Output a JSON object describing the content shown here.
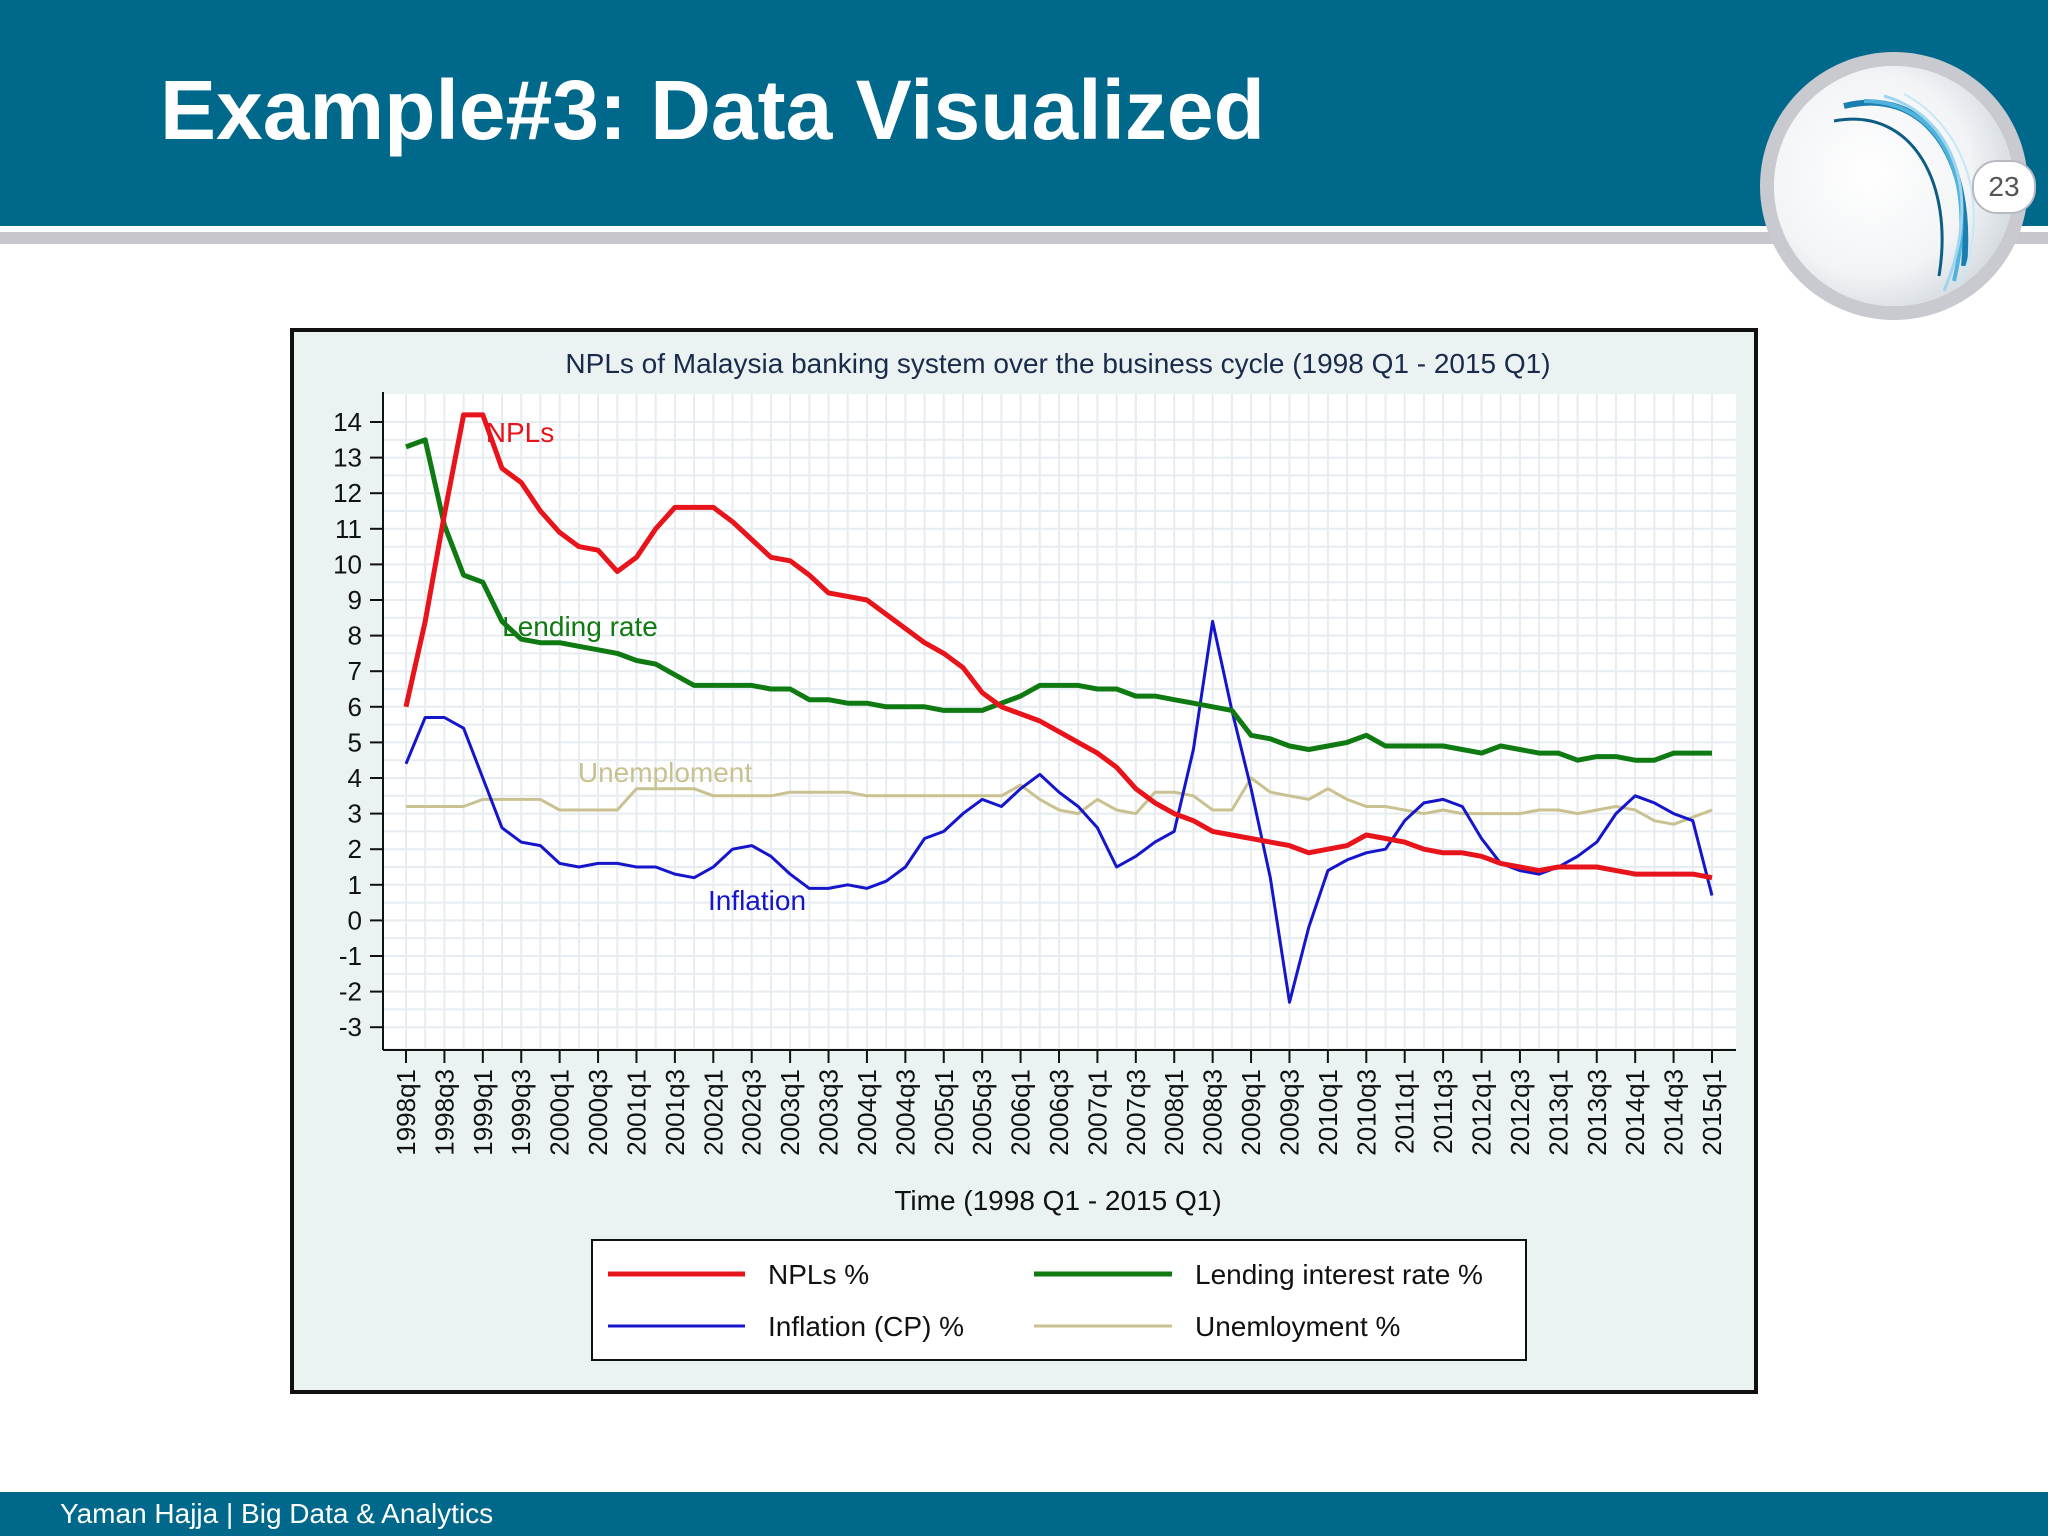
{
  "slide": {
    "title": "Example#3: Data Visualized",
    "page_number": "23",
    "footer": "Yaman Hajja | Big Data & Analytics"
  },
  "colors": {
    "header_band": "#00688b",
    "stripe": "#c6c6cc",
    "npls": "#e8141c",
    "lending": "#0f7a12",
    "inflation": "#1515cc",
    "unemployment": "#c9c190"
  },
  "icons": [
    "swirl-logo-icon"
  ],
  "chart_data": {
    "type": "line",
    "title": "NPLs of Malaysia banking system over the business cycle (1998 Q1 - 2015 Q1)",
    "xlabel": "Time (1998 Q1 - 2015 Q1)",
    "ylabel": "",
    "ylim": [
      -3,
      14
    ],
    "yticks": [
      "14",
      "13",
      "12",
      "11",
      "10",
      "9",
      "8",
      "7",
      "6",
      "5",
      "4",
      "3",
      "2",
      "1",
      "0",
      "-1",
      "-2",
      "-3"
    ],
    "x": [
      "1998q1",
      "1998q2",
      "1998q3",
      "1998q4",
      "1999q1",
      "1999q2",
      "1999q3",
      "1999q4",
      "2000q1",
      "2000q2",
      "2000q3",
      "2000q4",
      "2001q1",
      "2001q2",
      "2001q3",
      "2001q4",
      "2002q1",
      "2002q2",
      "2002q3",
      "2002q4",
      "2003q1",
      "2003q2",
      "2003q3",
      "2003q4",
      "2004q1",
      "2004q2",
      "2004q3",
      "2004q4",
      "2005q1",
      "2005q2",
      "2005q3",
      "2005q4",
      "2006q1",
      "2006q2",
      "2006q3",
      "2006q4",
      "2007q1",
      "2007q2",
      "2007q3",
      "2007q4",
      "2008q1",
      "2008q2",
      "2008q3",
      "2008q4",
      "2009q1",
      "2009q2",
      "2009q3",
      "2009q4",
      "2010q1",
      "2010q2",
      "2010q3",
      "2010q4",
      "2011q1",
      "2011q2",
      "2011q3",
      "2011q4",
      "2012q1",
      "2012q2",
      "2012q3",
      "2012q4",
      "2013q1",
      "2013q2",
      "2013q3",
      "2013q4",
      "2014q1",
      "2014q2",
      "2014q3",
      "2014q4",
      "2015q1"
    ],
    "x_tick_labels": [
      "1998q1",
      "1998q3",
      "1999q1",
      "1999q3",
      "2000q1",
      "2000q3",
      "2001q1",
      "2001q3",
      "2002q1",
      "2002q3",
      "2003q1",
      "2003q3",
      "2004q1",
      "2004q3",
      "2005q1",
      "2005q3",
      "2006q1",
      "2006q3",
      "2007q1",
      "2007q3",
      "2008q1",
      "2008q3",
      "2009q1",
      "2009q3",
      "2010q1",
      "2010q3",
      "2011q1",
      "2011q3",
      "2012q1",
      "2012q3",
      "2013q1",
      "2013q3",
      "2014q1",
      "2014q3",
      "2015q1"
    ],
    "grid": true,
    "legend_position": "bottom",
    "series": [
      {
        "key": "npls",
        "name": "NPLs %",
        "inline_label": "NPLs",
        "values": [
          6.0,
          8.4,
          11.4,
          14.2,
          14.2,
          12.7,
          12.3,
          11.5,
          10.9,
          10.5,
          10.4,
          9.8,
          10.2,
          11.0,
          11.6,
          11.6,
          11.6,
          11.2,
          10.7,
          10.2,
          10.1,
          9.7,
          9.2,
          9.1,
          9.0,
          8.6,
          8.2,
          7.8,
          7.5,
          7.1,
          6.4,
          6.0,
          5.8,
          5.6,
          5.3,
          5.0,
          4.7,
          4.3,
          3.7,
          3.3,
          3.0,
          2.8,
          2.5,
          2.4,
          2.3,
          2.2,
          2.1,
          1.9,
          2.0,
          2.1,
          2.4,
          2.3,
          2.2,
          2.0,
          1.9,
          1.9,
          1.8,
          1.6,
          1.5,
          1.4,
          1.5,
          1.5,
          1.5,
          1.4,
          1.3,
          1.3,
          1.3,
          1.3,
          1.2
        ]
      },
      {
        "key": "lending",
        "name": "Lending interest rate %",
        "inline_label": "Lending rate",
        "values": [
          13.3,
          13.5,
          11.1,
          9.7,
          9.5,
          8.4,
          7.9,
          7.8,
          7.8,
          7.7,
          7.6,
          7.5,
          7.3,
          7.2,
          6.9,
          6.6,
          6.6,
          6.6,
          6.6,
          6.5,
          6.5,
          6.2,
          6.2,
          6.1,
          6.1,
          6.0,
          6.0,
          6.0,
          5.9,
          5.9,
          5.9,
          6.1,
          6.3,
          6.6,
          6.6,
          6.6,
          6.5,
          6.5,
          6.3,
          6.3,
          6.2,
          6.1,
          6.0,
          5.9,
          5.2,
          5.1,
          4.9,
          4.8,
          4.9,
          5.0,
          5.2,
          4.9,
          4.9,
          4.9,
          4.9,
          4.8,
          4.7,
          4.9,
          4.8,
          4.7,
          4.7,
          4.5,
          4.6,
          4.6,
          4.5,
          4.5,
          4.7,
          4.7,
          4.7
        ]
      },
      {
        "key": "inflation",
        "name": "Inflation (CP) %",
        "inline_label": "Inflation",
        "values": [
          4.4,
          5.7,
          5.7,
          5.4,
          4.0,
          2.6,
          2.2,
          2.1,
          1.6,
          1.5,
          1.6,
          1.6,
          1.5,
          1.5,
          1.3,
          1.2,
          1.5,
          2.0,
          2.1,
          1.8,
          1.3,
          0.9,
          0.9,
          1.0,
          0.9,
          1.1,
          1.5,
          2.3,
          2.5,
          3.0,
          3.4,
          3.2,
          3.7,
          4.1,
          3.6,
          3.2,
          2.6,
          1.5,
          1.8,
          2.2,
          2.5,
          4.8,
          8.4,
          5.9,
          3.7,
          1.2,
          -2.3,
          -0.2,
          1.4,
          1.7,
          1.9,
          2.0,
          2.8,
          3.3,
          3.4,
          3.2,
          2.3,
          1.6,
          1.4,
          1.3,
          1.5,
          1.8,
          2.2,
          3.0,
          3.5,
          3.3,
          3.0,
          2.8,
          0.7
        ]
      },
      {
        "key": "unemployment",
        "name": "Unemloyment %",
        "inline_label": "Unemploment",
        "values": [
          3.2,
          3.2,
          3.2,
          3.2,
          3.4,
          3.4,
          3.4,
          3.4,
          3.1,
          3.1,
          3.1,
          3.1,
          3.7,
          3.7,
          3.7,
          3.7,
          3.5,
          3.5,
          3.5,
          3.5,
          3.6,
          3.6,
          3.6,
          3.6,
          3.5,
          3.5,
          3.5,
          3.5,
          3.5,
          3.5,
          3.5,
          3.5,
          3.8,
          3.4,
          3.1,
          3.0,
          3.4,
          3.1,
          3.0,
          3.6,
          3.6,
          3.5,
          3.1,
          3.1,
          4.0,
          3.6,
          3.5,
          3.4,
          3.7,
          3.4,
          3.2,
          3.2,
          3.1,
          3.0,
          3.1,
          3.0,
          3.0,
          3.0,
          3.0,
          3.1,
          3.1,
          3.0,
          3.1,
          3.2,
          3.1,
          2.8,
          2.7,
          2.9,
          3.1
        ]
      }
    ]
  }
}
